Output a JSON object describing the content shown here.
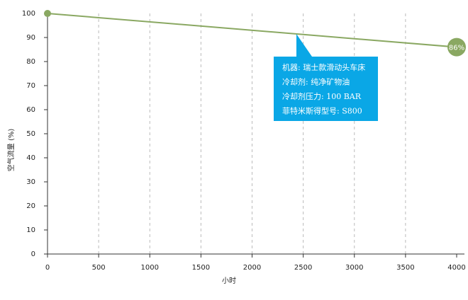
{
  "chart_data": {
    "type": "line",
    "x_label": "小时",
    "y_label": "空气流量 (%)",
    "x": [
      0,
      4000
    ],
    "values": [
      100,
      86
    ],
    "value_labels": [
      null,
      "86%"
    ],
    "color": "#8aa862",
    "xlim": [
      0,
      4000
    ],
    "xticks": [
      0,
      500,
      1000,
      1500,
      2000,
      2500,
      3000,
      3500,
      4000
    ],
    "ylim": [
      0,
      100
    ],
    "yticks": [
      0,
      10,
      20,
      30,
      40,
      50,
      60,
      70,
      80,
      90,
      100
    ],
    "grid": "x",
    "annotation": {
      "color": "#0aa7e6",
      "lines": [
        "机器: 瑞士款滑动头车床",
        "冷却剂: 纯净矿物油",
        "冷却剂压力: 100 BAR",
        "菲特米斯得型号: S800"
      ]
    }
  }
}
